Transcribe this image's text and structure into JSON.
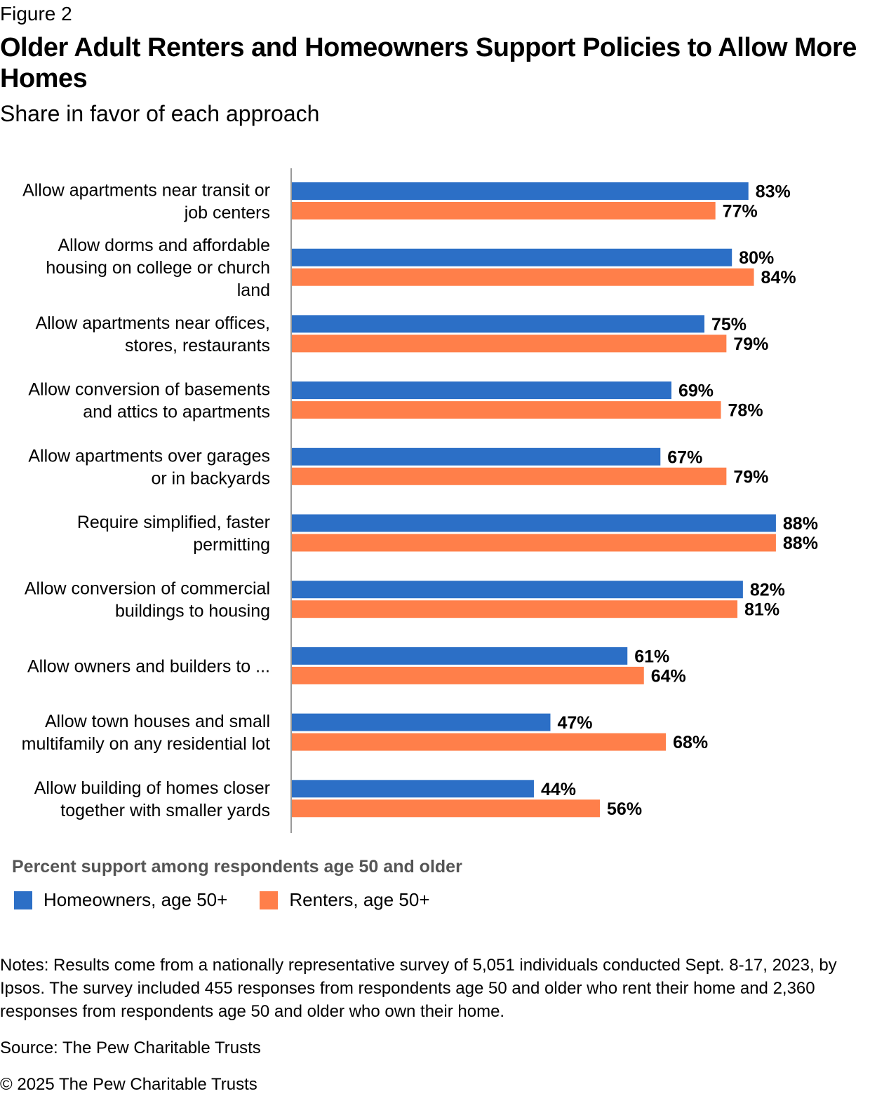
{
  "figure_label": "Figure 2",
  "subtitle": "Share in favor of each approach",
  "legend_title": "Percent support among respondents age 50 and older",
  "notes": "Notes: Results come from a nationally representative survey of 5,051 individuals conducted Sept. 8-17, 2023, by Ipsos. The survey included 455 responses from respondents age 50 and older who rent their home and 2,360 responses from respondents age 50 and older who own their home.",
  "source": "Source: The Pew Charitable Trusts",
  "copyright": "© 2025 The Pew Charitable Trusts",
  "colors": {
    "homeowners": "#2c6fc6",
    "renters": "#ff7f4a",
    "axis": "#999999"
  },
  "chart_data": {
    "type": "bar",
    "orientation": "horizontal",
    "title": "Older Adult Renters and Homeowners Support Policies to Allow More Homes",
    "categories": [
      [
        "Allow apartments near transit or",
        "job centers"
      ],
      [
        "Allow dorms and affordable",
        "housing on college or church",
        "land"
      ],
      [
        "Allow apartments near offices,",
        "stores, restaurants"
      ],
      [
        "Allow conversion of basements",
        "and attics to apartments"
      ],
      [
        "Allow apartments over garages",
        "or in backyards"
      ],
      [
        "Require simplified, faster",
        "permitting"
      ],
      [
        "Allow conversion of commercial",
        "buildings to housing"
      ],
      [
        "Allow owners and builders to ..."
      ],
      [
        "Allow town houses and small",
        "multifamily on any residential lot"
      ],
      [
        "Allow building of homes closer",
        "together with smaller yards"
      ]
    ],
    "series": [
      {
        "name": "Homeowners, age 50+",
        "values": [
          83,
          80,
          75,
          69,
          67,
          88,
          82,
          61,
          47,
          44
        ]
      },
      {
        "name": "Renters, age 50+",
        "values": [
          77,
          84,
          79,
          78,
          79,
          88,
          81,
          64,
          68,
          56
        ]
      }
    ],
    "value_suffix": "%",
    "xlim": [
      0,
      100
    ],
    "grid": false,
    "legend_position": "bottom-left"
  }
}
